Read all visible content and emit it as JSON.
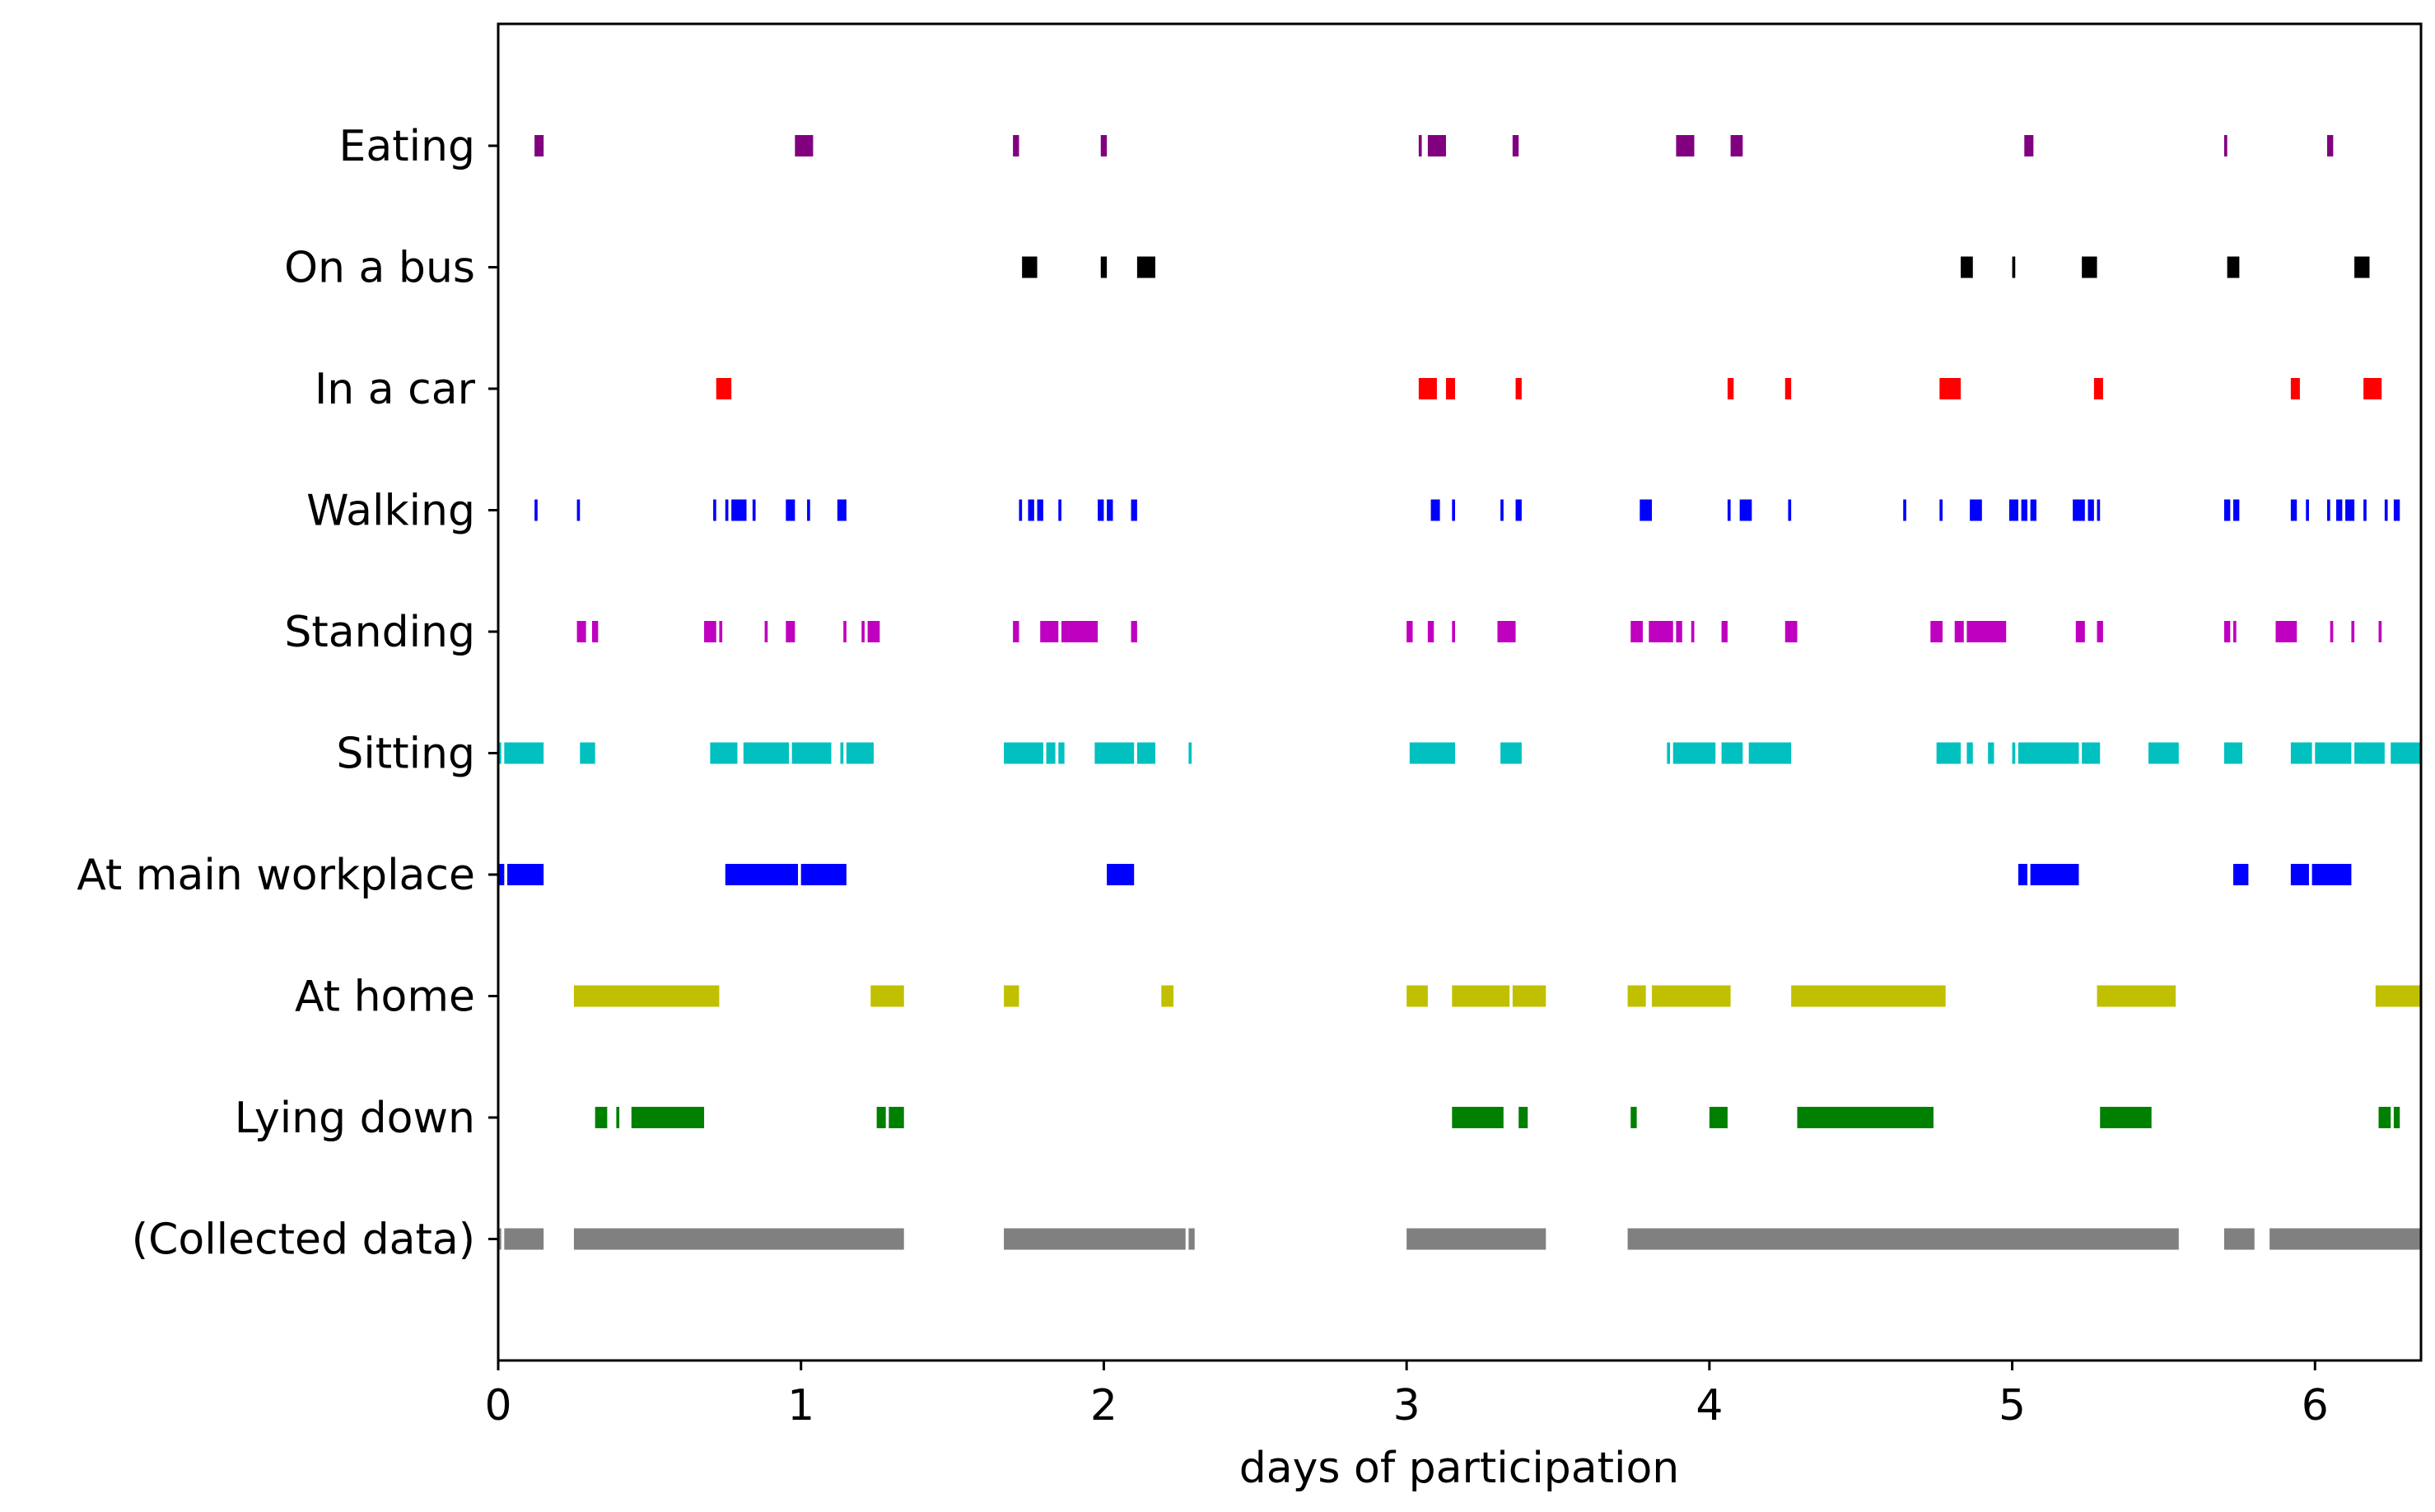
{
  "chart_data": {
    "type": "timeline",
    "title": "",
    "xlabel": "days of participation",
    "ylabel": "",
    "xlim": [
      0,
      6.35
    ],
    "xticks": [
      0,
      1,
      2,
      3,
      4,
      5,
      6
    ],
    "grid": false,
    "legend": "none",
    "series": [
      {
        "label": "Eating",
        "color": "#800080",
        "segments": [
          [
            0.12,
            0.15
          ],
          [
            0.98,
            1.04
          ],
          [
            1.7,
            1.72
          ],
          [
            1.99,
            2.01
          ],
          [
            3.04,
            3.05
          ],
          [
            3.07,
            3.13
          ],
          [
            3.35,
            3.37
          ],
          [
            3.89,
            3.95
          ],
          [
            4.07,
            4.11
          ],
          [
            5.04,
            5.07
          ],
          [
            5.7,
            5.71
          ],
          [
            6.04,
            6.06
          ]
        ]
      },
      {
        "label": "On a bus",
        "color": "#000000",
        "segments": [
          [
            1.73,
            1.78
          ],
          [
            1.99,
            2.01
          ],
          [
            2.11,
            2.17
          ],
          [
            4.83,
            4.87
          ],
          [
            5.0,
            5.01
          ],
          [
            5.23,
            5.28
          ],
          [
            5.71,
            5.75
          ],
          [
            6.13,
            6.18
          ]
        ]
      },
      {
        "label": "In a car",
        "color": "#ff0000",
        "segments": [
          [
            0.72,
            0.77
          ],
          [
            3.04,
            3.1
          ],
          [
            3.13,
            3.16
          ],
          [
            3.36,
            3.38
          ],
          [
            4.06,
            4.08
          ],
          [
            4.25,
            4.27
          ],
          [
            4.76,
            4.83
          ],
          [
            5.27,
            5.3
          ],
          [
            5.92,
            5.95
          ],
          [
            6.16,
            6.22
          ]
        ]
      },
      {
        "label": "Walking",
        "color": "#0000ff",
        "segments": [
          [
            0.12,
            0.13
          ],
          [
            0.26,
            0.27
          ],
          [
            0.71,
            0.72
          ],
          [
            0.75,
            0.76
          ],
          [
            0.77,
            0.82
          ],
          [
            0.84,
            0.85
          ],
          [
            0.95,
            0.98
          ],
          [
            1.02,
            1.03
          ],
          [
            1.12,
            1.15
          ],
          [
            1.72,
            1.73
          ],
          [
            1.75,
            1.77
          ],
          [
            1.78,
            1.8
          ],
          [
            1.85,
            1.86
          ],
          [
            1.98,
            2.0
          ],
          [
            2.01,
            2.03
          ],
          [
            2.09,
            2.11
          ],
          [
            3.08,
            3.11
          ],
          [
            3.15,
            3.16
          ],
          [
            3.31,
            3.32
          ],
          [
            3.36,
            3.38
          ],
          [
            3.77,
            3.81
          ],
          [
            4.06,
            4.07
          ],
          [
            4.1,
            4.14
          ],
          [
            4.26,
            4.27
          ],
          [
            4.64,
            4.65
          ],
          [
            4.76,
            4.77
          ],
          [
            4.86,
            4.9
          ],
          [
            4.99,
            5.02
          ],
          [
            5.03,
            5.05
          ],
          [
            5.06,
            5.08
          ],
          [
            5.2,
            5.24
          ],
          [
            5.25,
            5.27
          ],
          [
            5.28,
            5.29
          ],
          [
            5.7,
            5.72
          ],
          [
            5.73,
            5.75
          ],
          [
            5.92,
            5.94
          ],
          [
            5.97,
            5.98
          ],
          [
            6.04,
            6.05
          ],
          [
            6.07,
            6.09
          ],
          [
            6.1,
            6.13
          ],
          [
            6.16,
            6.17
          ],
          [
            6.23,
            6.24
          ],
          [
            6.26,
            6.28
          ]
        ]
      },
      {
        "label": "Standing",
        "color": "#c000c0",
        "segments": [
          [
            0.26,
            0.29
          ],
          [
            0.31,
            0.33
          ],
          [
            0.68,
            0.72
          ],
          [
            0.73,
            0.74
          ],
          [
            0.88,
            0.89
          ],
          [
            0.95,
            0.98
          ],
          [
            1.14,
            1.15
          ],
          [
            1.2,
            1.21
          ],
          [
            1.22,
            1.26
          ],
          [
            1.7,
            1.72
          ],
          [
            1.79,
            1.85
          ],
          [
            1.86,
            1.98
          ],
          [
            2.09,
            2.11
          ],
          [
            3.0,
            3.02
          ],
          [
            3.07,
            3.09
          ],
          [
            3.15,
            3.16
          ],
          [
            3.3,
            3.36
          ],
          [
            3.74,
            3.78
          ],
          [
            3.8,
            3.88
          ],
          [
            3.89,
            3.91
          ],
          [
            3.94,
            3.95
          ],
          [
            4.04,
            4.06
          ],
          [
            4.25,
            4.29
          ],
          [
            4.73,
            4.77
          ],
          [
            4.81,
            4.84
          ],
          [
            4.85,
            4.98
          ],
          [
            5.21,
            5.24
          ],
          [
            5.28,
            5.3
          ],
          [
            5.7,
            5.72
          ],
          [
            5.73,
            5.74
          ],
          [
            5.87,
            5.94
          ],
          [
            6.05,
            6.06
          ],
          [
            6.12,
            6.13
          ],
          [
            6.21,
            6.22
          ]
        ]
      },
      {
        "label": "Sitting",
        "color": "#00c0c0",
        "segments": [
          [
            0.0,
            0.01
          ],
          [
            0.02,
            0.15
          ],
          [
            0.27,
            0.32
          ],
          [
            0.7,
            0.79
          ],
          [
            0.81,
            0.96
          ],
          [
            0.97,
            1.1
          ],
          [
            1.13,
            1.14
          ],
          [
            1.15,
            1.24
          ],
          [
            1.67,
            1.8
          ],
          [
            1.81,
            1.84
          ],
          [
            1.85,
            1.87
          ],
          [
            1.97,
            2.1
          ],
          [
            2.11,
            2.17
          ],
          [
            2.28,
            2.29
          ],
          [
            3.01,
            3.16
          ],
          [
            3.31,
            3.38
          ],
          [
            3.86,
            3.87
          ],
          [
            3.88,
            4.02
          ],
          [
            4.04,
            4.11
          ],
          [
            4.13,
            4.27
          ],
          [
            4.75,
            4.83
          ],
          [
            4.85,
            4.87
          ],
          [
            4.92,
            4.94
          ],
          [
            5.0,
            5.01
          ],
          [
            5.02,
            5.22
          ],
          [
            5.23,
            5.29
          ],
          [
            5.45,
            5.55
          ],
          [
            5.7,
            5.76
          ],
          [
            5.92,
            5.99
          ],
          [
            6.0,
            6.12
          ],
          [
            6.13,
            6.23
          ],
          [
            6.25,
            6.35
          ]
        ]
      },
      {
        "label": "At main workplace",
        "color": "#0000ff",
        "segments": [
          [
            0.0,
            0.02
          ],
          [
            0.03,
            0.15
          ],
          [
            0.75,
            0.99
          ],
          [
            1.0,
            1.15
          ],
          [
            2.01,
            2.1
          ],
          [
            5.02,
            5.05
          ],
          [
            5.06,
            5.22
          ],
          [
            5.73,
            5.78
          ],
          [
            5.92,
            5.98
          ],
          [
            5.99,
            6.12
          ]
        ]
      },
      {
        "label": "At home",
        "color": "#c0c000",
        "segments": [
          [
            0.25,
            0.73
          ],
          [
            1.23,
            1.34
          ],
          [
            1.67,
            1.72
          ],
          [
            2.19,
            2.23
          ],
          [
            3.0,
            3.07
          ],
          [
            3.15,
            3.34
          ],
          [
            3.35,
            3.46
          ],
          [
            3.73,
            3.79
          ],
          [
            3.81,
            4.07
          ],
          [
            4.27,
            4.78
          ],
          [
            5.28,
            5.54
          ],
          [
            6.2,
            6.35
          ]
        ]
      },
      {
        "label": "Lying down",
        "color": "#008000",
        "segments": [
          [
            0.32,
            0.36
          ],
          [
            0.39,
            0.4
          ],
          [
            0.44,
            0.68
          ],
          [
            1.25,
            1.28
          ],
          [
            1.29,
            1.34
          ],
          [
            3.15,
            3.32
          ],
          [
            3.37,
            3.4
          ],
          [
            3.74,
            3.76
          ],
          [
            4.0,
            4.06
          ],
          [
            4.29,
            4.74
          ],
          [
            5.29,
            5.46
          ],
          [
            6.21,
            6.25
          ],
          [
            6.26,
            6.28
          ]
        ]
      },
      {
        "label": "(Collected data)",
        "color": "#808080",
        "segments": [
          [
            0.0,
            0.01
          ],
          [
            0.02,
            0.15
          ],
          [
            0.25,
            1.34
          ],
          [
            1.67,
            2.27
          ],
          [
            2.28,
            2.3
          ],
          [
            3.0,
            3.46
          ],
          [
            3.73,
            5.55
          ],
          [
            5.7,
            5.8
          ],
          [
            5.85,
            6.35
          ]
        ]
      }
    ]
  }
}
